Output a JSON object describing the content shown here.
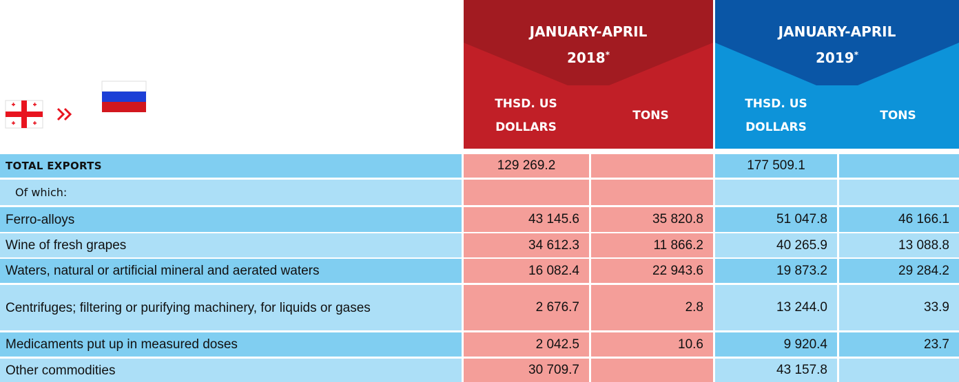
{
  "header": {
    "periods": [
      {
        "title": "JANUARY-APRIL",
        "year": "2018",
        "mark": "*"
      },
      {
        "title": "JANUARY-APRIL",
        "year": "2019",
        "mark": "*"
      }
    ],
    "columns": [
      "THSD. US DOLLARS",
      "TONS"
    ]
  },
  "table": {
    "rows": [
      {
        "label": "TOTAL EXPORTS",
        "values": [
          "129 269.2",
          null,
          "177 509.1",
          null
        ]
      },
      {
        "label": "Of which:",
        "values": [
          null,
          null,
          null,
          null
        ]
      },
      {
        "label": "Ferro-alloys",
        "values": [
          "43 145.6",
          "35 820.8",
          "51 047.8",
          "46 166.1"
        ]
      },
      {
        "label": "Wine of fresh grapes",
        "values": [
          "34 612.3",
          "11 866.2",
          "40 265.9",
          "13 088.8"
        ]
      },
      {
        "label": "Waters, natural or artificial mineral and aerated waters",
        "values": [
          "16 082.4",
          "22 943.6",
          "19 873.2",
          "29 284.2"
        ]
      },
      {
        "label": "Centrifuges; filtering or purifying machinery, for liquids or gases",
        "values": [
          "2 676.7",
          "2.8",
          "13 244.0",
          "33.9"
        ]
      },
      {
        "label": "Medicaments put up in measured doses",
        "values": [
          "2 042.5",
          "10.6",
          "9 920.4",
          "23.7"
        ]
      },
      {
        "label": "Other commodities",
        "values": [
          "30 709.7",
          null,
          "43 157.8",
          null
        ]
      }
    ]
  }
}
